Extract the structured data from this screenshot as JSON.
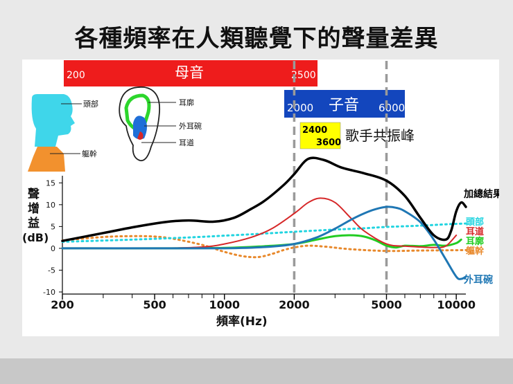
{
  "slide": {
    "title": "各種頻率在人類聽覺下的聲量差異"
  },
  "bands": {
    "vowel": {
      "label": "母音",
      "start_label": "200",
      "end_label": "2500",
      "color": "#ee1c1c"
    },
    "consonant": {
      "label": "子音",
      "start_label": "2000",
      "end_label": "6000",
      "color": "#1346bd"
    },
    "singer": {
      "label": "歌手共振峰",
      "low": "2400",
      "high": "3600",
      "color": "#ffff00"
    }
  },
  "anatomy": {
    "head_labels": [
      "頭部",
      "軀幹"
    ],
    "ear_labels": [
      "耳廓",
      "外耳碗",
      "耳道"
    ]
  },
  "chart_data": {
    "type": "line",
    "title": "各種頻率在人類聽覺下的聲量差異",
    "xlabel": "頻率(Hz)",
    "ylabel_lines": [
      "聲",
      "增",
      "益"
    ],
    "ylabel_unit": "(dB)",
    "xscale": "log",
    "xlim": [
      200,
      11000
    ],
    "ylim": [
      -10,
      16
    ],
    "xticks": [
      200,
      500,
      1000,
      2000,
      5000,
      10000
    ],
    "xtick_labels": [
      "200",
      "500",
      "1000",
      "2000",
      "5000",
      "10000"
    ],
    "yticks": [
      -10,
      -5,
      0,
      5,
      10,
      15
    ],
    "ytick_labels": [
      "-10",
      "-5",
      "0",
      "5",
      "10",
      "15"
    ],
    "reference_lines": [
      2000,
      5000
    ],
    "series": [
      {
        "name": "加總結果",
        "color": "#000000",
        "dash": false,
        "width": 3.5,
        "x": [
          200,
          300,
          400,
          550,
          700,
          900,
          1100,
          1300,
          1500,
          1800,
          2000,
          2300,
          2700,
          3200,
          4000,
          5000,
          6000,
          7000,
          8000,
          9000,
          9500,
          10000,
          10500,
          11000
        ],
        "y": [
          1.7,
          3.5,
          4.8,
          6.0,
          6.4,
          6.1,
          7.0,
          9.0,
          11.0,
          14.5,
          17.0,
          20.5,
          20.2,
          18.5,
          17.2,
          15.5,
          12.0,
          7.0,
          3.0,
          2.0,
          4.0,
          8.5,
          10.5,
          9.5
        ]
      },
      {
        "name": "耳道",
        "color": "#d62728",
        "dash": false,
        "width": 2,
        "x": [
          200,
          500,
          800,
          1000,
          1300,
          1600,
          2000,
          2300,
          2600,
          3000,
          3500,
          4000,
          5000,
          6000,
          7000,
          8000,
          9000,
          10000
        ],
        "y": [
          0,
          0,
          0.3,
          1.0,
          2.5,
          4.5,
          8.0,
          10.5,
          11.5,
          10.5,
          7.0,
          4.0,
          1.0,
          0.5,
          0.3,
          0.2,
          0.5,
          3.0
        ]
      },
      {
        "name": "外耳碗",
        "color": "#1f77b4",
        "dash": false,
        "width": 3,
        "x": [
          200,
          500,
          1000,
          1500,
          2000,
          2500,
          3000,
          3500,
          4000,
          4500,
          5000,
          5500,
          6000,
          7000,
          8000,
          9000,
          10000,
          10500,
          11000
        ],
        "y": [
          0,
          0,
          0,
          0.3,
          1.0,
          2.5,
          4.5,
          6.5,
          8.0,
          9.0,
          9.5,
          9.3,
          8.5,
          6.0,
          2.0,
          -2.5,
          -6.5,
          -7.0,
          -6.5
        ]
      },
      {
        "name": "耳廓",
        "color": "#22cc22",
        "dash": false,
        "width": 3,
        "x": [
          200,
          500,
          1000,
          1500,
          2000,
          2500,
          3000,
          3500,
          4000,
          4500,
          5000,
          5500,
          6000,
          7000,
          8000,
          9000,
          10000,
          10500
        ],
        "y": [
          0,
          0,
          0.1,
          0.5,
          1.0,
          2.0,
          2.8,
          3.0,
          2.7,
          1.8,
          0.6,
          0.2,
          0.6,
          0.5,
          0.8,
          0.6,
          1.2,
          2.0
        ]
      },
      {
        "name": "頭部",
        "color": "#22d4e0",
        "dash": true,
        "width": 3,
        "x": [
          200,
          400,
          700,
          1000,
          1500,
          2000,
          3000,
          4000,
          5000,
          7000,
          9000,
          11000
        ],
        "y": [
          1.5,
          2.0,
          2.5,
          2.9,
          3.4,
          3.8,
          4.3,
          4.6,
          4.9,
          5.2,
          5.5,
          5.7
        ]
      },
      {
        "name": "軀幹",
        "color": "#e8892c",
        "dash": true,
        "width": 3,
        "x": [
          200,
          300,
          400,
          500,
          600,
          800,
          1000,
          1200,
          1400,
          1600,
          1800,
          2000,
          2300,
          2700,
          3500,
          5000,
          7000,
          11000
        ],
        "y": [
          1.8,
          2.6,
          2.8,
          2.7,
          2.2,
          0.8,
          -0.8,
          -1.8,
          -2.0,
          -1.3,
          -0.4,
          0.2,
          0.6,
          0.4,
          -0.2,
          -0.6,
          -0.5,
          -0.4
        ]
      }
    ]
  }
}
